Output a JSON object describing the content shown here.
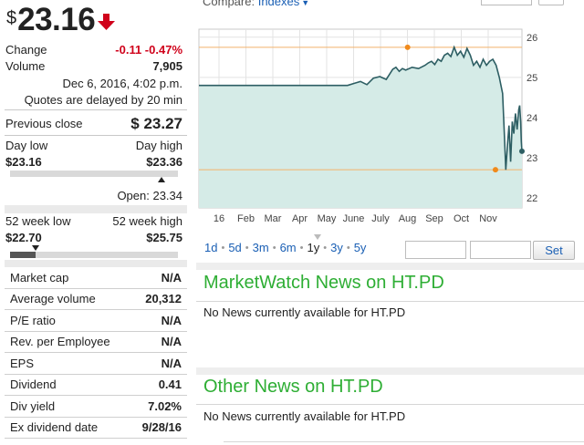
{
  "quote": {
    "currency": "$",
    "price": "23.16",
    "direction": "down",
    "change_label": "Change",
    "change_value": "-0.11 -0.47%",
    "volume_label": "Volume",
    "volume_value": "7,905",
    "timestamp": "Dec 6, 2016, 4:02 p.m.",
    "delay_note": "Quotes are delayed by 20 min",
    "prev_close_label": "Previous close",
    "prev_close_value": "$ 23.27",
    "day_low_label": "Day low",
    "day_high_label": "Day high",
    "day_low": "$23.16",
    "day_high": "$23.36",
    "day_position": 0.0,
    "open_label": "Open: 23.34",
    "open_position": 0.9,
    "wk52_low_label": "52 week low",
    "wk52_high_label": "52 week high",
    "wk52_low": "$22.70",
    "wk52_high": "$25.75",
    "wk52_position": 0.15
  },
  "stats": [
    {
      "label": "Market cap",
      "value": "N/A"
    },
    {
      "label": "Average volume",
      "value": "20,312"
    },
    {
      "label": "P/E ratio",
      "value": "N/A"
    },
    {
      "label": "Rev. per Employee",
      "value": "N/A"
    },
    {
      "label": "EPS",
      "value": "N/A"
    },
    {
      "label": "Dividend",
      "value": "0.41"
    },
    {
      "label": "Div yield",
      "value": "7.02%"
    },
    {
      "label": "Ex dividend date",
      "value": "9/28/16"
    }
  ],
  "compare": {
    "label": "Compare:",
    "link": "Indexes"
  },
  "range_buttons": [
    "1d",
    "5d",
    "3m",
    "6m",
    "1y",
    "3y",
    "5y"
  ],
  "active_range": "1y",
  "set_label": "Set",
  "news": [
    {
      "title": "MarketWatch News on HT.PD",
      "empty_text": "No News currently available for HT.PD"
    },
    {
      "title": "Other News on HT.PD",
      "empty_text": "No News currently available for HT.PD"
    }
  ],
  "colors": {
    "accent": "#1a5fb4",
    "negative": "#d0021b",
    "news_title": "#2eae34",
    "chart_fill": "#d5ebe7",
    "chart_line": "#2d5e63",
    "marker": "#f08a1c"
  },
  "chart_data": {
    "type": "area",
    "x_tick_labels": [
      "16",
      "Feb",
      "Mar",
      "Apr",
      "May",
      "June",
      "July",
      "Aug",
      "Sep",
      "Oct",
      "Nov"
    ],
    "y_tick_labels": [
      "26",
      "25",
      "24",
      "23",
      "22"
    ],
    "ylim": [
      21.75,
      26.2
    ],
    "grid": true,
    "reference_lines": [
      25.75,
      22.7
    ],
    "markers": [
      {
        "label": "52 week high",
        "x": 0.646,
        "y": 25.75
      },
      {
        "label": "52 week low",
        "x": 0.918,
        "y": 22.7
      }
    ],
    "series": [
      {
        "points": [
          [
            0.0,
            24.8
          ],
          [
            0.46,
            24.8
          ],
          [
            0.48,
            24.85
          ],
          [
            0.5,
            24.9
          ],
          [
            0.52,
            24.82
          ],
          [
            0.54,
            24.98
          ],
          [
            0.56,
            25.02
          ],
          [
            0.58,
            24.95
          ],
          [
            0.6,
            25.2
          ],
          [
            0.61,
            25.25
          ],
          [
            0.62,
            25.15
          ],
          [
            0.63,
            25.22
          ],
          [
            0.64,
            25.18
          ],
          [
            0.66,
            25.25
          ],
          [
            0.68,
            25.22
          ],
          [
            0.7,
            25.3
          ],
          [
            0.71,
            25.36
          ],
          [
            0.72,
            25.4
          ],
          [
            0.73,
            25.32
          ],
          [
            0.74,
            25.45
          ],
          [
            0.75,
            25.4
          ],
          [
            0.76,
            25.55
          ],
          [
            0.77,
            25.6
          ],
          [
            0.78,
            25.52
          ],
          [
            0.79,
            25.75
          ],
          [
            0.8,
            25.55
          ],
          [
            0.81,
            25.65
          ],
          [
            0.82,
            25.5
          ],
          [
            0.83,
            25.72
          ],
          [
            0.84,
            25.55
          ],
          [
            0.85,
            25.3
          ],
          [
            0.86,
            25.4
          ],
          [
            0.87,
            25.25
          ],
          [
            0.88,
            25.45
          ],
          [
            0.89,
            25.3
          ],
          [
            0.9,
            25.4
          ],
          [
            0.91,
            25.45
          ],
          [
            0.92,
            25.3
          ],
          [
            0.93,
            25.0
          ],
          [
            0.94,
            24.6
          ],
          [
            0.945,
            23.7
          ],
          [
            0.95,
            22.7
          ],
          [
            0.955,
            23.3
          ],
          [
            0.96,
            23.8
          ],
          [
            0.965,
            22.9
          ],
          [
            0.97,
            23.9
          ],
          [
            0.975,
            23.6
          ],
          [
            0.98,
            24.1
          ],
          [
            0.985,
            23.7
          ],
          [
            0.99,
            24.2
          ],
          [
            0.993,
            24.3
          ],
          [
            0.996,
            23.9
          ],
          [
            0.998,
            23.4
          ],
          [
            1.0,
            23.16
          ]
        ]
      }
    ]
  }
}
